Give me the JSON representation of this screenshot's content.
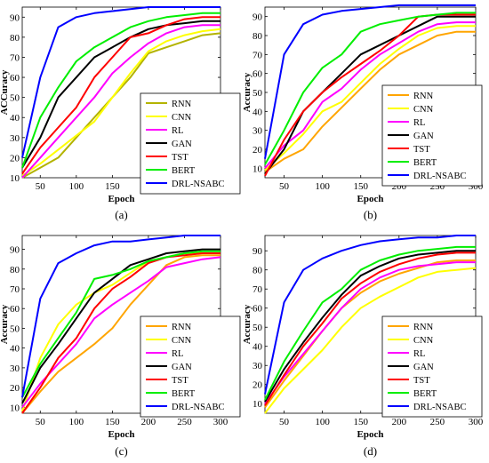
{
  "chart_data": [
    {
      "type": "line",
      "panel_label": "(a)",
      "xlabel": "Epoch",
      "ylabel": "ACCuracy",
      "xlim": [
        25,
        300
      ],
      "ylim": [
        10,
        95
      ],
      "xticks": [
        50,
        100,
        150,
        200,
        250,
        300
      ],
      "yticks": [
        10,
        20,
        30,
        40,
        50,
        60,
        70,
        80,
        90
      ],
      "grid": false,
      "legend_position": "bottom-right",
      "series": [
        {
          "name": "RNN",
          "color": "#b3b300",
          "x": [
            25,
            50,
            75,
            100,
            125,
            150,
            175,
            200,
            225,
            250,
            275,
            300
          ],
          "y": [
            10,
            15,
            20,
            30,
            40,
            50,
            60,
            72,
            75,
            78,
            81,
            82
          ]
        },
        {
          "name": "CNN",
          "color": "#ffff00",
          "x": [
            25,
            50,
            75,
            100,
            125,
            150,
            175,
            200,
            225,
            250,
            275,
            300
          ],
          "y": [
            11,
            17,
            24,
            31,
            38,
            50,
            62,
            73,
            78,
            81,
            83,
            84
          ]
        },
        {
          "name": "RL",
          "color": "#ff00ff",
          "x": [
            25,
            50,
            75,
            100,
            125,
            150,
            175,
            200,
            225,
            250,
            275,
            300
          ],
          "y": [
            10,
            20,
            30,
            40,
            50,
            62,
            70,
            77,
            82,
            85,
            86,
            86
          ]
        },
        {
          "name": "GAN",
          "color": "#000000",
          "x": [
            25,
            50,
            75,
            100,
            125,
            150,
            175,
            200,
            225,
            250,
            275,
            300
          ],
          "y": [
            15,
            30,
            50,
            60,
            70,
            75,
            80,
            84,
            86,
            87,
            88,
            88
          ]
        },
        {
          "name": "TST",
          "color": "#ff0000",
          "x": [
            25,
            50,
            75,
            100,
            125,
            150,
            175,
            200,
            225,
            250,
            275,
            300
          ],
          "y": [
            12,
            25,
            35,
            45,
            60,
            70,
            80,
            82,
            86,
            89,
            90,
            90
          ]
        },
        {
          "name": "BERT",
          "color": "#00ee00",
          "x": [
            25,
            50,
            75,
            100,
            125,
            150,
            175,
            200,
            225,
            250,
            275,
            300
          ],
          "y": [
            15,
            40,
            55,
            68,
            75,
            80,
            85,
            88,
            90,
            91,
            92,
            92
          ]
        },
        {
          "name": "DRL-NSABC",
          "color": "#0000ff",
          "x": [
            25,
            50,
            75,
            100,
            125,
            150,
            175,
            200,
            225,
            250,
            275,
            300
          ],
          "y": [
            20,
            60,
            85,
            90,
            92,
            93,
            94,
            95,
            95,
            95,
            95,
            95
          ]
        }
      ]
    },
    {
      "type": "line",
      "panel_label": "(b)",
      "xlabel": "Epoch",
      "ylabel": "Accuracy",
      "xlim": [
        25,
        300
      ],
      "ylim": [
        5,
        95
      ],
      "xticks": [
        50,
        100,
        150,
        200,
        250,
        300
      ],
      "yticks": [
        10,
        20,
        30,
        40,
        50,
        60,
        70,
        80,
        90
      ],
      "grid": false,
      "legend_position": "bottom-right",
      "series": [
        {
          "name": "RNN",
          "color": "#ffa500",
          "x": [
            25,
            50,
            75,
            100,
            125,
            150,
            175,
            200,
            225,
            250,
            275,
            300
          ],
          "y": [
            8,
            15,
            20,
            32,
            42,
            52,
            62,
            70,
            75,
            80,
            82,
            82
          ]
        },
        {
          "name": "CNN",
          "color": "#ffff00",
          "x": [
            25,
            50,
            75,
            100,
            125,
            150,
            175,
            200,
            225,
            250,
            275,
            300
          ],
          "y": [
            9,
            18,
            28,
            40,
            45,
            55,
            65,
            73,
            80,
            84,
            85,
            85
          ]
        },
        {
          "name": "RL",
          "color": "#ff00ff",
          "x": [
            25,
            50,
            75,
            100,
            125,
            150,
            175,
            200,
            225,
            250,
            275,
            300
          ],
          "y": [
            10,
            22,
            30,
            45,
            52,
            62,
            70,
            76,
            82,
            86,
            87,
            87
          ]
        },
        {
          "name": "GAN",
          "color": "#000000",
          "x": [
            25,
            50,
            75,
            100,
            125,
            150,
            175,
            200,
            225,
            250,
            275,
            300
          ],
          "y": [
            7,
            20,
            40,
            50,
            60,
            70,
            75,
            80,
            85,
            90,
            90,
            90
          ]
        },
        {
          "name": "TST",
          "color": "#ff0000",
          "x": [
            25,
            50,
            75,
            100,
            125,
            150,
            175,
            200,
            225,
            250,
            275,
            300
          ],
          "y": [
            6,
            25,
            40,
            50,
            58,
            65,
            72,
            80,
            90,
            91,
            91,
            91
          ]
        },
        {
          "name": "BERT",
          "color": "#00ee00",
          "x": [
            25,
            50,
            75,
            100,
            125,
            150,
            175,
            200,
            225,
            250,
            275,
            300
          ],
          "y": [
            12,
            30,
            50,
            63,
            70,
            82,
            86,
            88,
            90,
            91,
            92,
            92
          ]
        },
        {
          "name": "DRL-NSABC",
          "color": "#0000ff",
          "x": [
            25,
            50,
            75,
            100,
            125,
            150,
            175,
            200,
            225,
            250,
            275,
            300
          ],
          "y": [
            15,
            70,
            86,
            91,
            93,
            94,
            95,
            96,
            96,
            96,
            96,
            96
          ]
        }
      ]
    },
    {
      "type": "line",
      "panel_label": "(c)",
      "xlabel": "Epoch",
      "ylabel": "Accuracy",
      "xlim": [
        25,
        300
      ],
      "ylim": [
        7,
        97
      ],
      "xticks": [
        50,
        100,
        150,
        200,
        250,
        300
      ],
      "yticks": [
        10,
        20,
        30,
        40,
        50,
        60,
        70,
        80,
        90
      ],
      "grid": false,
      "legend_position": "bottom-right",
      "series": [
        {
          "name": "RNN",
          "color": "#ffa500",
          "x": [
            25,
            50,
            75,
            100,
            125,
            150,
            175,
            200,
            225,
            250,
            275,
            300
          ],
          "y": [
            7,
            18,
            28,
            35,
            42,
            50,
            62,
            72,
            82,
            86,
            87,
            87
          ]
        },
        {
          "name": "CNN",
          "color": "#ffff00",
          "x": [
            25,
            50,
            75,
            100,
            125,
            150,
            175,
            200,
            225,
            250,
            275,
            300
          ],
          "y": [
            8,
            35,
            52,
            62,
            68,
            72,
            78,
            84,
            86,
            88,
            88,
            88
          ]
        },
        {
          "name": "RL",
          "color": "#ff00ff",
          "x": [
            25,
            50,
            75,
            100,
            125,
            150,
            175,
            200,
            225,
            250,
            275,
            300
          ],
          "y": [
            10,
            22,
            32,
            42,
            55,
            62,
            68,
            74,
            81,
            83,
            85,
            86
          ]
        },
        {
          "name": "GAN",
          "color": "#000000",
          "x": [
            25,
            50,
            75,
            100,
            125,
            150,
            175,
            200,
            225,
            250,
            275,
            300
          ],
          "y": [
            12,
            30,
            42,
            55,
            68,
            75,
            82,
            85,
            88,
            89,
            90,
            90
          ]
        },
        {
          "name": "TST",
          "color": "#ff0000",
          "x": [
            25,
            50,
            75,
            100,
            125,
            150,
            175,
            200,
            225,
            250,
            275,
            300
          ],
          "y": [
            7,
            20,
            35,
            45,
            60,
            70,
            76,
            83,
            86,
            87,
            88,
            88
          ]
        },
        {
          "name": "BERT",
          "color": "#00ee00",
          "x": [
            25,
            50,
            75,
            100,
            125,
            150,
            175,
            200,
            225,
            250,
            275,
            300
          ],
          "y": [
            15,
            32,
            45,
            58,
            75,
            77,
            80,
            84,
            86,
            88,
            89,
            89
          ]
        },
        {
          "name": "DRL-NSABC",
          "color": "#0000ff",
          "x": [
            25,
            50,
            75,
            100,
            125,
            150,
            175,
            200,
            225,
            250,
            275,
            300
          ],
          "y": [
            15,
            65,
            83,
            88,
            92,
            94,
            94,
            95,
            96,
            97,
            97,
            97
          ]
        }
      ]
    },
    {
      "type": "line",
      "panel_label": "(d)",
      "xlabel": "Epoch",
      "ylabel": "Accuracy",
      "xlim": [
        25,
        300
      ],
      "ylim": [
        5,
        98
      ],
      "xticks": [
        50,
        100,
        150,
        200,
        250,
        300
      ],
      "yticks": [
        10,
        20,
        30,
        40,
        50,
        60,
        70,
        80,
        90
      ],
      "grid": false,
      "legend_position": "bottom-right",
      "series": [
        {
          "name": "RNN",
          "color": "#ffa500",
          "x": [
            25,
            50,
            75,
            100,
            125,
            150,
            175,
            200,
            225,
            250,
            275,
            300
          ],
          "y": [
            8,
            22,
            35,
            48,
            60,
            68,
            74,
            78,
            81,
            84,
            85,
            85
          ]
        },
        {
          "name": "CNN",
          "color": "#ffff00",
          "x": [
            25,
            50,
            75,
            100,
            125,
            150,
            175,
            200,
            225,
            250,
            275,
            300
          ],
          "y": [
            5,
            18,
            28,
            38,
            50,
            60,
            66,
            71,
            76,
            79,
            80,
            81
          ]
        },
        {
          "name": "RL",
          "color": "#ff00ff",
          "x": [
            25,
            50,
            75,
            100,
            125,
            150,
            175,
            200,
            225,
            250,
            275,
            300
          ],
          "y": [
            10,
            24,
            36,
            48,
            60,
            70,
            76,
            80,
            82,
            83,
            84,
            84
          ]
        },
        {
          "name": "GAN",
          "color": "#000000",
          "x": [
            25,
            50,
            75,
            100,
            125,
            150,
            175,
            200,
            225,
            250,
            275,
            300
          ],
          "y": [
            11,
            28,
            42,
            55,
            67,
            77,
            82,
            86,
            88,
            89,
            90,
            90
          ]
        },
        {
          "name": "TST",
          "color": "#ff0000",
          "x": [
            25,
            50,
            75,
            100,
            125,
            150,
            175,
            200,
            225,
            250,
            275,
            300
          ],
          "y": [
            9,
            25,
            40,
            52,
            65,
            73,
            79,
            83,
            86,
            88,
            89,
            89
          ]
        },
        {
          "name": "BERT",
          "color": "#00ee00",
          "x": [
            25,
            50,
            75,
            100,
            125,
            150,
            175,
            200,
            225,
            250,
            275,
            300
          ],
          "y": [
            12,
            32,
            48,
            63,
            70,
            80,
            85,
            88,
            90,
            91,
            92,
            92
          ]
        },
        {
          "name": "DRL-NSABC",
          "color": "#0000ff",
          "x": [
            25,
            50,
            75,
            100,
            125,
            150,
            175,
            200,
            225,
            250,
            275,
            300
          ],
          "y": [
            15,
            63,
            80,
            86,
            90,
            93,
            95,
            96,
            97,
            97,
            98,
            98
          ]
        }
      ]
    }
  ]
}
